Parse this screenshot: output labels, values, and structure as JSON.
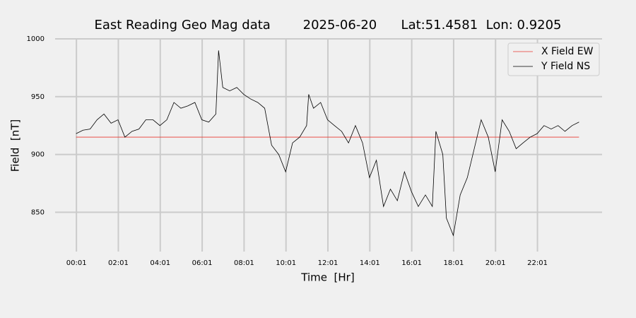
{
  "chart_data": {
    "type": "line",
    "title": "East Reading Geo Mag data        2025-06-20      Lat:51.4581  Lon: 0.9205",
    "xlabel": "Time  [Hr]",
    "ylabel": "Field  [nT]",
    "xlim": [
      -1.0,
      25.1
    ],
    "ylim": [
      816,
      1000
    ],
    "xticks": [
      {
        "value": 0.0167,
        "label": "00:01"
      },
      {
        "value": 2.0167,
        "label": "02:01"
      },
      {
        "value": 4.0167,
        "label": "04:01"
      },
      {
        "value": 6.0167,
        "label": "06:01"
      },
      {
        "value": 8.0167,
        "label": "08:01"
      },
      {
        "value": 10.0167,
        "label": "10:01"
      },
      {
        "value": 12.0167,
        "label": "12:01"
      },
      {
        "value": 14.0167,
        "label": "14:01"
      },
      {
        "value": 16.0167,
        "label": "16:01"
      },
      {
        "value": 18.0167,
        "label": "18:01"
      },
      {
        "value": 20.0167,
        "label": "20:01"
      },
      {
        "value": 22.0167,
        "label": "22:01"
      }
    ],
    "yticks": [
      850,
      900,
      950,
      1000
    ],
    "grid": true,
    "legend": "upper right",
    "series": [
      {
        "name": "X Field EW",
        "color": "#e8392f",
        "x": [
          0,
          24
        ],
        "values": [
          915,
          915
        ]
      },
      {
        "name": "Y Field NS",
        "color": "#000000",
        "x": [
          0,
          0.33,
          0.67,
          1,
          1.33,
          1.67,
          2,
          2.33,
          2.67,
          3,
          3.33,
          3.67,
          4,
          4.33,
          4.67,
          5,
          5.33,
          5.67,
          6,
          6.33,
          6.67,
          6.8,
          7,
          7.33,
          7.67,
          8,
          8.33,
          8.67,
          9,
          9.33,
          9.67,
          10,
          10.33,
          10.67,
          11,
          11.1,
          11.33,
          11.67,
          12,
          12.33,
          12.67,
          13,
          13.33,
          13.67,
          14,
          14.33,
          14.67,
          15,
          15.33,
          15.67,
          16,
          16.33,
          16.67,
          17,
          17.17,
          17.5,
          17.67,
          18,
          18.33,
          18.67,
          19,
          19.33,
          19.67,
          20,
          20.33,
          20.67,
          21,
          21.33,
          21.67,
          22,
          22.33,
          22.67,
          23,
          23.33,
          23.67,
          24
        ],
        "values": [
          918,
          921,
          922,
          930,
          935,
          927,
          930,
          915,
          920,
          922,
          930,
          930,
          925,
          930,
          945,
          940,
          942,
          945,
          930,
          928,
          935,
          990,
          958,
          955,
          958,
          952,
          948,
          945,
          940,
          908,
          900,
          885,
          910,
          915,
          925,
          952,
          940,
          945,
          930,
          925,
          920,
          910,
          925,
          910,
          880,
          895,
          855,
          870,
          860,
          885,
          868,
          855,
          865,
          855,
          920,
          900,
          845,
          830,
          865,
          880,
          905,
          930,
          915,
          885,
          930,
          920,
          905,
          910,
          915,
          918,
          925,
          922,
          925,
          920,
          925,
          928
        ]
      }
    ]
  }
}
